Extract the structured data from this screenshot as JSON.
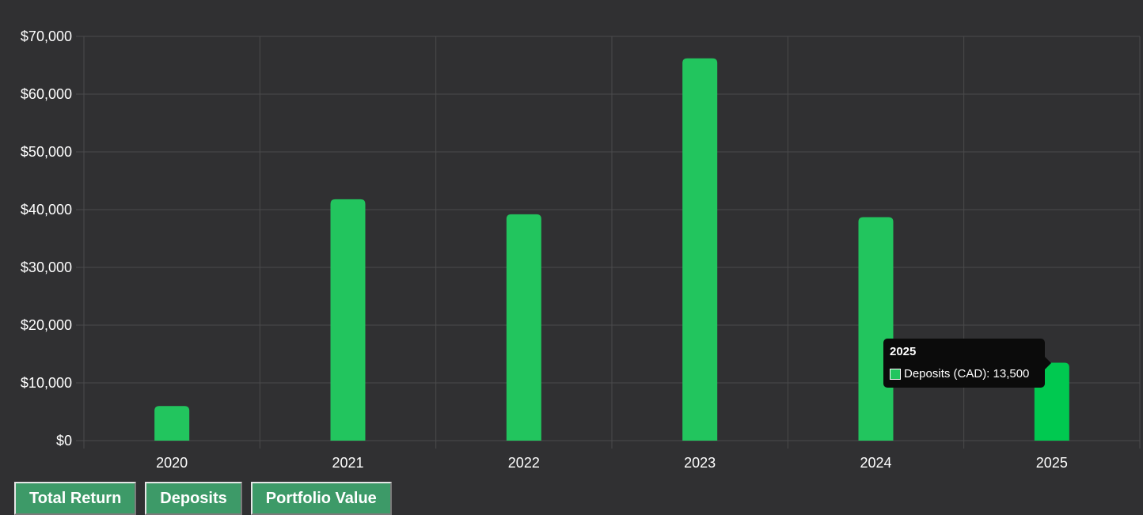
{
  "chart_data": {
    "type": "bar",
    "categories": [
      "2020",
      "2021",
      "2022",
      "2023",
      "2024",
      "2025"
    ],
    "series": [
      {
        "name": "Deposits (CAD)",
        "values": [
          6000,
          41800,
          39200,
          66200,
          38700,
          13500
        ],
        "color": "#22c55e"
      }
    ],
    "highlight_color": "#00c950",
    "ylim": [
      0,
      70000
    ],
    "yticks": [
      "$0",
      "$10,000",
      "$20,000",
      "$30,000",
      "$40,000",
      "$50,000",
      "$60,000",
      "$70,000"
    ],
    "grid": true,
    "background": "#303032",
    "grid_color": "#4a4a4c",
    "tooltip": {
      "title": "2025",
      "label": "Deposits (CAD): 13,500"
    }
  },
  "buttons": [
    {
      "label": "Total Return"
    },
    {
      "label": "Deposits"
    },
    {
      "label": "Portfolio Value"
    }
  ]
}
